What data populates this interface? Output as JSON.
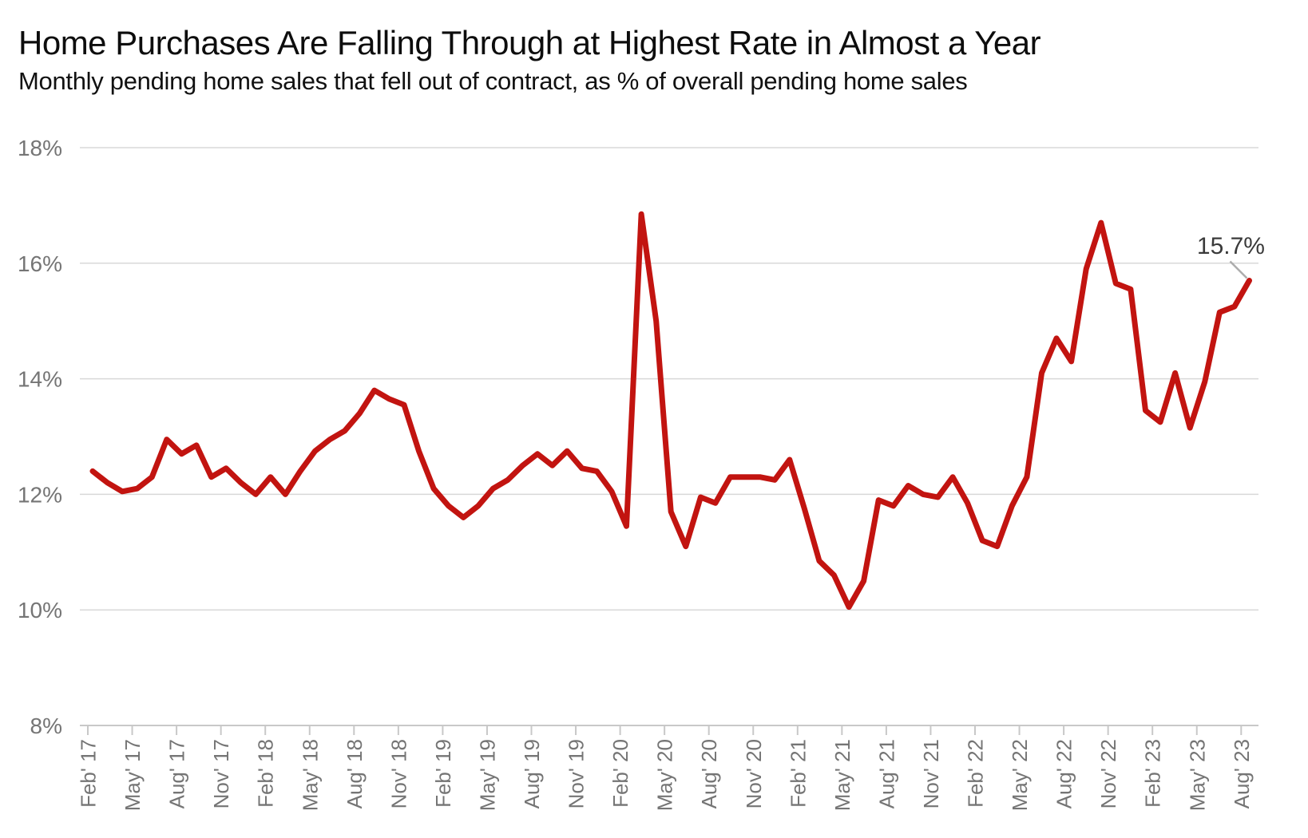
{
  "header": {
    "title": "Home Purchases Are Falling Through at Highest Rate in Almost a Year",
    "subtitle": "Monthly pending home sales that fell out of contract, as % of overall pending home sales"
  },
  "chart_data": {
    "type": "line",
    "title": "Home Purchases Are Falling Through at Highest Rate in Almost a Year",
    "subtitle": "Monthly pending home sales that fell out of contract, as % of overall pending home sales",
    "xlabel": "",
    "ylabel": "",
    "ylim": [
      8,
      18
    ],
    "grid": "horizontal",
    "legend_position": "none",
    "y_ticks": [
      {
        "value": 18,
        "label": "18%"
      },
      {
        "value": 16,
        "label": "16%"
      },
      {
        "value": 14,
        "label": "14%"
      },
      {
        "value": 12,
        "label": "12%"
      },
      {
        "value": 10,
        "label": "10%"
      },
      {
        "value": 8,
        "label": "8%"
      }
    ],
    "x_tick_labels": [
      "Feb' 17",
      "May' 17",
      "Aug' 17",
      "Nov' 17",
      "Feb' 18",
      "May' 18",
      "Aug' 18",
      "Nov' 18",
      "Feb' 19",
      "May' 19",
      "Aug' 19",
      "Nov' 19",
      "Feb' 20",
      "May' 20",
      "Aug' 20",
      "Nov' 20",
      "Feb' 21",
      "May' 21",
      "Aug' 21",
      "Nov' 21",
      "Feb' 22",
      "May' 22",
      "Aug' 22",
      "Nov' 22",
      "Feb' 23",
      "May' 23",
      "Aug' 23"
    ],
    "months_per_tick": 3,
    "x_months": [
      "Feb 2017",
      "Mar 2017",
      "Apr 2017",
      "May 2017",
      "Jun 2017",
      "Jul 2017",
      "Aug 2017",
      "Sep 2017",
      "Oct 2017",
      "Nov 2017",
      "Dec 2017",
      "Jan 2018",
      "Feb 2018",
      "Mar 2018",
      "Apr 2018",
      "May 2018",
      "Jun 2018",
      "Jul 2018",
      "Aug 2018",
      "Sep 2018",
      "Oct 2018",
      "Nov 2018",
      "Dec 2018",
      "Jan 2019",
      "Feb 2019",
      "Mar 2019",
      "Apr 2019",
      "May 2019",
      "Jun 2019",
      "Jul 2019",
      "Aug 2019",
      "Sep 2019",
      "Oct 2019",
      "Nov 2019",
      "Dec 2019",
      "Jan 2020",
      "Feb 2020",
      "Mar 2020",
      "Apr 2020",
      "May 2020",
      "Jun 2020",
      "Jul 2020",
      "Aug 2020",
      "Sep 2020",
      "Oct 2020",
      "Nov 2020",
      "Dec 2020",
      "Jan 2021",
      "Feb 2021",
      "Mar 2021",
      "Apr 2021",
      "May 2021",
      "Jun 2021",
      "Jul 2021",
      "Aug 2021",
      "Sep 2021",
      "Oct 2021",
      "Nov 2021",
      "Dec 2021",
      "Jan 2022",
      "Feb 2022",
      "Mar 2022",
      "Apr 2022",
      "May 2022",
      "Jun 2022",
      "Jul 2022",
      "Aug 2022",
      "Sep 2022",
      "Oct 2022",
      "Nov 2022",
      "Dec 2022",
      "Jan 2023",
      "Feb 2023",
      "Mar 2023",
      "Apr 2023",
      "May 2023",
      "Jun 2023",
      "Jul 2023",
      "Aug 2023"
    ],
    "series": [
      {
        "name": "Pending home sales that fell out of contract (%)",
        "values": [
          12.4,
          12.2,
          12.05,
          12.1,
          12.3,
          12.95,
          12.7,
          12.85,
          12.3,
          12.45,
          12.2,
          12.0,
          12.3,
          12.0,
          12.4,
          12.75,
          12.95,
          13.1,
          13.4,
          13.8,
          13.65,
          13.55,
          12.75,
          12.1,
          11.8,
          11.6,
          11.8,
          12.1,
          12.25,
          12.5,
          12.7,
          12.5,
          12.75,
          12.45,
          12.4,
          12.05,
          11.45,
          16.85,
          15.0,
          11.7,
          11.1,
          11.95,
          11.85,
          12.3,
          12.3,
          12.3,
          12.25,
          12.6,
          11.75,
          10.85,
          10.6,
          10.05,
          10.5,
          11.9,
          11.8,
          12.15,
          12.0,
          11.95,
          12.3,
          11.85,
          11.2,
          11.1,
          11.8,
          12.3,
          14.1,
          14.7,
          14.3,
          15.9,
          16.7,
          15.65,
          15.55,
          13.45,
          13.25,
          14.1,
          13.15,
          13.95,
          15.15,
          15.25,
          15.7
        ]
      }
    ],
    "annotation": {
      "label": "15.7%",
      "month": "Aug 2023",
      "value": 15.7
    },
    "colors": {
      "line": "#C21410",
      "gridline": "#D8D8D8",
      "axis_line": "#C8C8C8",
      "tick": "#C8C8C8",
      "axis_text": "#757575",
      "annotation_text": "#3A3A3A",
      "leader_line": "#ADADAD",
      "title_text": "#0D0D0D"
    }
  }
}
